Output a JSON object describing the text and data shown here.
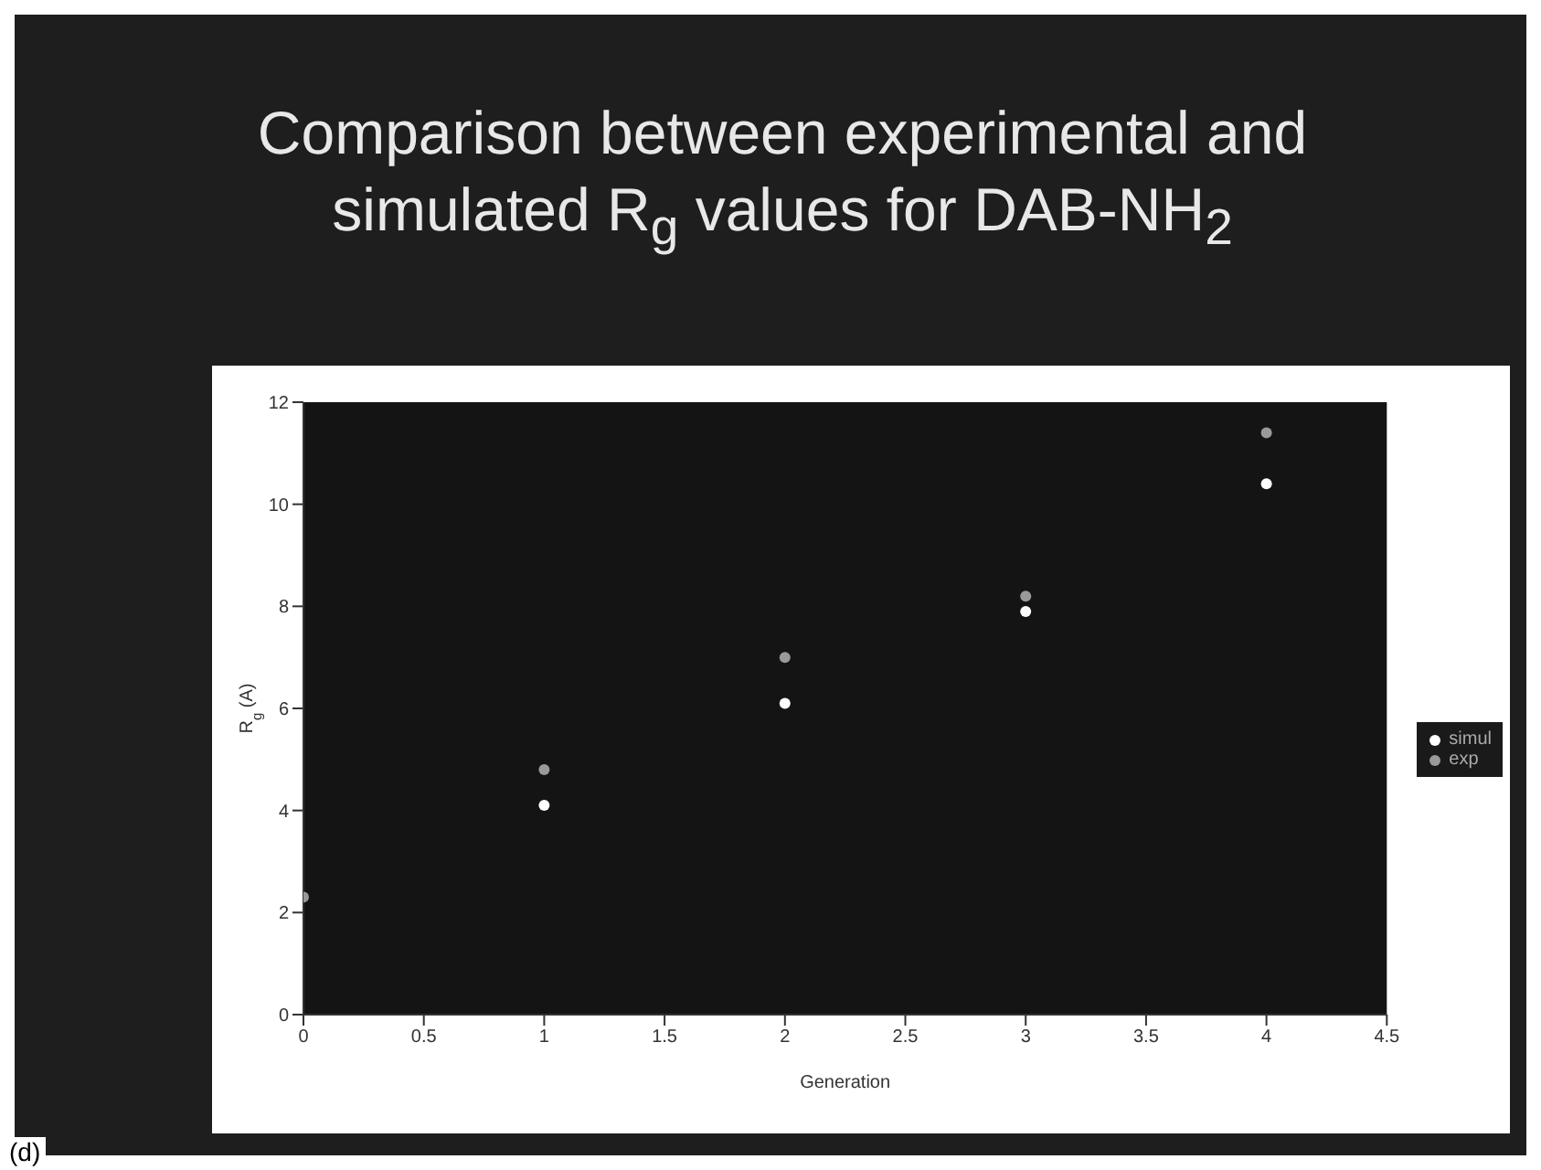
{
  "chart_data": {
    "type": "scatter",
    "title": "Comparison between experimental and simulated R$_{g}$ values for DAB-NH$_{2}$",
    "xlabel": "Generation",
    "ylabel": "R$_{g}$ (A)",
    "series": [
      {
        "name": "simul",
        "color": "#ffffff",
        "x": [
          1,
          2,
          3,
          4
        ],
        "values": [
          4.1,
          6.1,
          7.9,
          10.4
        ]
      },
      {
        "name": "exp",
        "color": "#9a9a9a",
        "x": [
          0,
          1,
          2,
          3,
          4
        ],
        "values": [
          2.3,
          4.8,
          7.0,
          8.2,
          11.4
        ]
      }
    ],
    "xlim": [
      0,
      4.5
    ],
    "xticks": [
      0,
      0.5,
      1,
      1.5,
      2,
      2.5,
      3,
      3.5,
      4,
      4.5
    ],
    "ylim": [
      0,
      12
    ],
    "yticks": [
      0,
      2,
      4,
      6,
      8,
      10,
      12
    ],
    "grid": false,
    "legend": "right",
    "marker": "circle",
    "annotations": [
      "(d)"
    ]
  }
}
